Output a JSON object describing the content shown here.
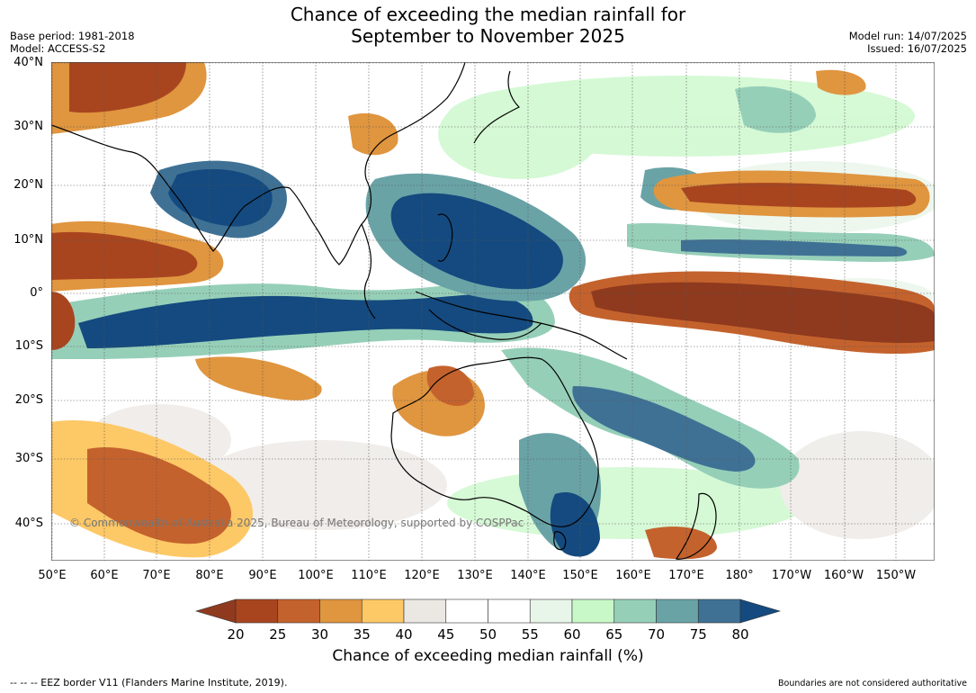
{
  "title_line1": "Chance of exceeding the median rainfall for",
  "title_line2": "September to November 2025",
  "base_period": "Base period: 1981-2018",
  "model": "Model: ACCESS-S2",
  "model_run": "Model run: 14/07/2025",
  "issued": "Issued: 16/07/2025",
  "copyright": "© Commonwealth of Australia 2025, Bureau of Meteorology, supported by COSPPac",
  "lat_labels": [
    "40°N",
    "30°N",
    "20°N",
    "10°N",
    "0°",
    "10°S",
    "20°S",
    "30°S",
    "40°S"
  ],
  "lon_labels": [
    "50°E",
    "60°E",
    "70°E",
    "80°E",
    "90°E",
    "100°E",
    "110°E",
    "120°E",
    "130°E",
    "140°E",
    "150°E",
    "160°E",
    "170°E",
    "180°",
    "170°W",
    "160°W",
    "150°W"
  ],
  "colorbar": {
    "ticks": [
      "20",
      "25",
      "30",
      "35",
      "40",
      "45",
      "50",
      "55",
      "60",
      "65",
      "70",
      "75",
      "80"
    ],
    "colors": [
      "#8f3a1e",
      "#a8451f",
      "#c4622d",
      "#e0953f",
      "#fdc866",
      "#ebe8e3",
      "#ffffff",
      "#ffffff",
      "#e8f5e9",
      "#c8f7c8",
      "#96cfb8",
      "#6aa3a6",
      "#3f7195",
      "#144a7f"
    ],
    "label": "Chance of exceeding median rainfall (%)"
  },
  "footer_left": "--  --  -- EEZ border V11 (Flanders Marine Institute, 2019).",
  "footer_right": "Boundaries are not considered authoritative"
}
